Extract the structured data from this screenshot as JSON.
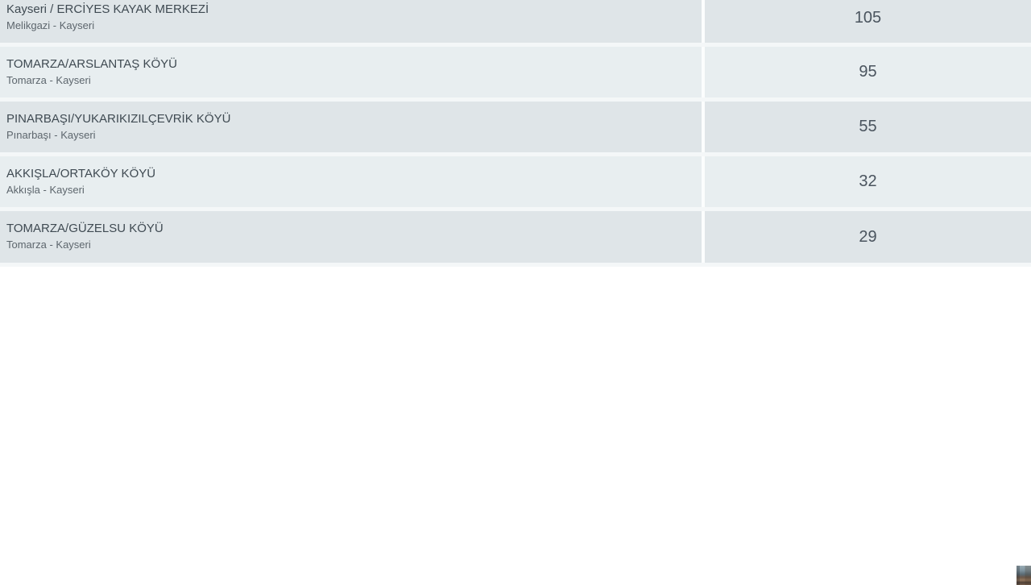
{
  "table": {
    "rows": [
      {
        "title": "Kayseri / ERCİYES KAYAK MERKEZİ",
        "subtitle": "Melikgazi - Kayseri",
        "value": "105"
      },
      {
        "title": "TOMARZA/ARSLANTAŞ KÖYÜ",
        "subtitle": "Tomarza - Kayseri",
        "value": "95"
      },
      {
        "title": "PINARBAŞI/YUKARIKIZILÇEVRİK KÖYÜ",
        "subtitle": "Pınarbaşı - Kayseri",
        "value": "55"
      },
      {
        "title": "AKKIŞLA/ORTAKÖY KÖYÜ",
        "subtitle": "Akkışla - Kayseri",
        "value": "32"
      },
      {
        "title": "TOMARZA/GÜZELSU KÖYÜ",
        "subtitle": "Tomarza - Kayseri",
        "value": "29"
      }
    ],
    "colors": {
      "row_dark_bg": "#dfe5e8",
      "row_light_bg": "#e8eef0",
      "separator": "#f4f7f8",
      "title_text": "#3f4a52",
      "subtitle_text": "#5d666d",
      "value_text": "#4a545e"
    }
  }
}
